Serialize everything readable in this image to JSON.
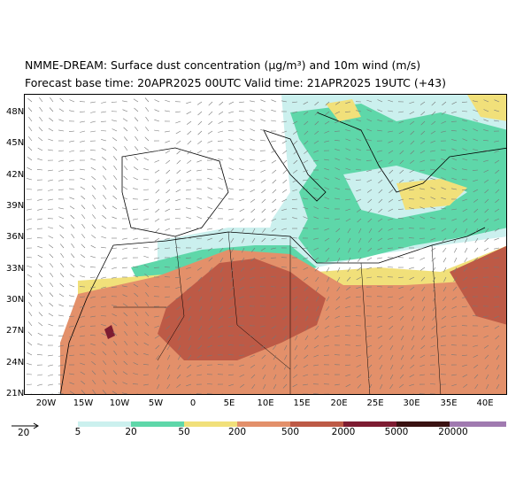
{
  "title_line1": "NMME-DREAM: Surface dust concentration (µg/m³) and 10m wind (m/s)",
  "title_line2": "Forecast base time: 20APR2025 00UTC    Valid time: 21APR2025 19UTC (+43)",
  "lat_ticks": [
    "48N",
    "45N",
    "42N",
    "39N",
    "36N",
    "33N",
    "30N",
    "27N",
    "24N",
    "21N"
  ],
  "lon_ticks": [
    "20W",
    "15W",
    "10W",
    "5W",
    "0",
    "5E",
    "10E",
    "15E",
    "20E",
    "25E",
    "30E",
    "35E",
    "40E"
  ],
  "wind_reference": {
    "label": "20",
    "icon": "arrow-icon"
  },
  "legend": {
    "labels": [
      "5",
      "20",
      "50",
      "200",
      "500",
      "2000",
      "5000",
      "20000"
    ],
    "colors": [
      "#cbf0ee",
      "#5ed7a9",
      "#f1e07a",
      "#e3906a",
      "#bd5a46",
      "#7d1c32",
      "#3a1212",
      "#a07ab0"
    ]
  },
  "colors": {
    "land_clear": "#ffffff",
    "dust_low": "#cbf0ee",
    "dust_mid": "#5ed7a9",
    "dust_yellow": "#f1e07a",
    "dust_orange": "#e3906a",
    "dust_brown": "#bd5a46",
    "dust_dark": "#7d1c32"
  }
}
